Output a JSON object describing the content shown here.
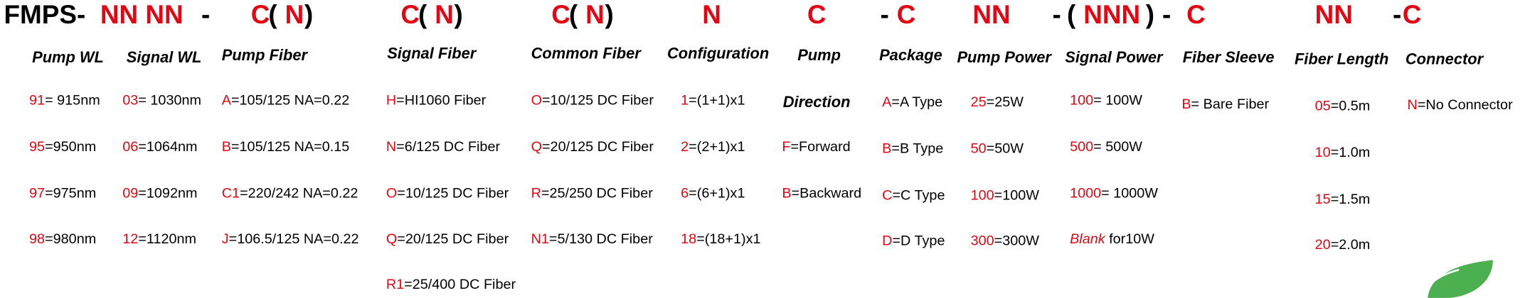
{
  "header": {
    "parts": [
      {
        "text": "FMPS-",
        "color": "#000000"
      },
      {
        "text": "NN NN",
        "color": "#e30613"
      },
      {
        "text": "-",
        "color": "#000000"
      },
      {
        "text": "C",
        "color": "#e30613"
      },
      {
        "text": "(",
        "color": "#000000"
      },
      {
        "text": "N",
        "color": "#e30613"
      },
      {
        "text": ")",
        "color": "#000000"
      },
      {
        "text": "C",
        "color": "#e30613"
      },
      {
        "text": "(",
        "color": "#000000"
      },
      {
        "text": "N",
        "color": "#e30613"
      },
      {
        "text": ")",
        "color": "#000000"
      },
      {
        "text": "C",
        "color": "#e30613"
      },
      {
        "text": "(",
        "color": "#000000"
      },
      {
        "text": "N",
        "color": "#e30613"
      },
      {
        "text": ")",
        "color": "#000000"
      },
      {
        "text": "N",
        "color": "#e30613"
      },
      {
        "text": "C",
        "color": "#e30613"
      },
      {
        "text": "-",
        "color": "#000000"
      },
      {
        "text": "C",
        "color": "#e30613"
      },
      {
        "text": "NN",
        "color": "#e30613"
      },
      {
        "text": "-",
        "color": "#000000"
      },
      {
        "text": "(",
        "color": "#000000"
      },
      {
        "text": "NNN",
        "color": "#e30613"
      },
      {
        "text": ")",
        "color": "#000000"
      },
      {
        "text": "-",
        "color": "#000000"
      },
      {
        "text": "C",
        "color": "#e30613"
      },
      {
        "text": "NN",
        "color": "#e30613"
      },
      {
        "text": "-",
        "color": "#000000"
      },
      {
        "text": "C",
        "color": "#e30613"
      }
    ]
  },
  "code_color": "#e30613",
  "columns": [
    {
      "title": "Pump WL",
      "items": [
        {
          "code": "91",
          "desc": "= 915nm"
        },
        {
          "code": "95",
          "desc": "=950nm"
        },
        {
          "code": "97",
          "desc": "=975nm"
        },
        {
          "code": "98",
          "desc": "=980nm"
        }
      ]
    },
    {
      "title": "Signal WL",
      "items": [
        {
          "code": "03",
          "desc": "= 1030nm"
        },
        {
          "code": "06",
          "desc": "=1064nm"
        },
        {
          "code": "09",
          "desc": "=1092nm"
        },
        {
          "code": "12",
          "desc": "=1120nm"
        }
      ]
    },
    {
      "title": "Pump Fiber",
      "items": [
        {
          "code": "A",
          "desc": "=105/125 NA=0.22"
        },
        {
          "code": "B",
          "desc": "=105/125 NA=0.15"
        },
        {
          "code": "C1",
          "desc": "=220/242 NA=0.22"
        },
        {
          "code": "J",
          "desc": "=106.5/125 NA=0.22"
        }
      ]
    },
    {
      "title": "Signal Fiber",
      "items": [
        {
          "code": "H",
          "desc": "=HI1060 Fiber"
        },
        {
          "code": "N",
          "desc": "=6/125 DC Fiber"
        },
        {
          "code": "O",
          "desc": "=10/125 DC Fiber"
        },
        {
          "code": "Q",
          "desc": "=20/125 DC Fiber"
        },
        {
          "code": "R1",
          "desc": "=25/400 DC Fiber"
        }
      ]
    },
    {
      "title": "Common Fiber",
      "items": [
        {
          "code": "O",
          "desc": "=10/125 DC Fiber"
        },
        {
          "code": "Q",
          "desc": "=20/125 DC Fiber"
        },
        {
          "code": "R",
          "desc": "=25/250 DC Fiber"
        },
        {
          "code": "N1",
          "desc": "=5/130 DC Fiber"
        }
      ]
    },
    {
      "title": "Configuration",
      "items": [
        {
          "code": "1",
          "desc": "=(1+1)x1"
        },
        {
          "code": "2",
          "desc": "=(2+1)x1"
        },
        {
          "code": "6",
          "desc": "=(6+1)x1"
        },
        {
          "code": "18",
          "desc": "=(18+1)x1"
        }
      ]
    },
    {
      "title": "Pump",
      "subtitle": "Direction",
      "items": [
        {
          "code": "F",
          "desc": "=Forward"
        },
        {
          "code": "B",
          "desc": "=Backward"
        }
      ]
    },
    {
      "title": "Package",
      "items": [
        {
          "code": "A",
          "desc": "=A Type"
        },
        {
          "code": "B",
          "desc": "=B Type"
        },
        {
          "code": "C",
          "desc": "=C Type"
        },
        {
          "code": "D",
          "desc": "=D Type"
        }
      ]
    },
    {
      "title": "Pump Power",
      "items": [
        {
          "code": "25",
          "desc": "=25W"
        },
        {
          "code": "50",
          "desc": "=50W"
        },
        {
          "code": "100",
          "desc": "=100W"
        },
        {
          "code": "300",
          "desc": "=300W"
        }
      ]
    },
    {
      "title": "Signal Power",
      "items": [
        {
          "code": "100",
          "desc": "= 100W"
        },
        {
          "code": "500",
          "desc": "= 500W"
        },
        {
          "code": "1000",
          "desc": "= 1000W"
        },
        {
          "code": "Blank",
          "desc": " for10W",
          "code_style": "italic"
        }
      ]
    },
    {
      "title": "Fiber Sleeve",
      "items": [
        {
          "code": "B",
          "desc": "= Bare Fiber"
        }
      ]
    },
    {
      "title": "Fiber Length",
      "items": [
        {
          "code": "05",
          "desc": "=0.5m"
        },
        {
          "code": "10",
          "desc": "=1.0m"
        },
        {
          "code": "15",
          "desc": "=1.5m"
        },
        {
          "code": "20",
          "desc": "=2.0m"
        }
      ]
    },
    {
      "title": "Connector",
      "items": [
        {
          "code": "N",
          "desc": "=No Connector"
        }
      ]
    }
  ]
}
